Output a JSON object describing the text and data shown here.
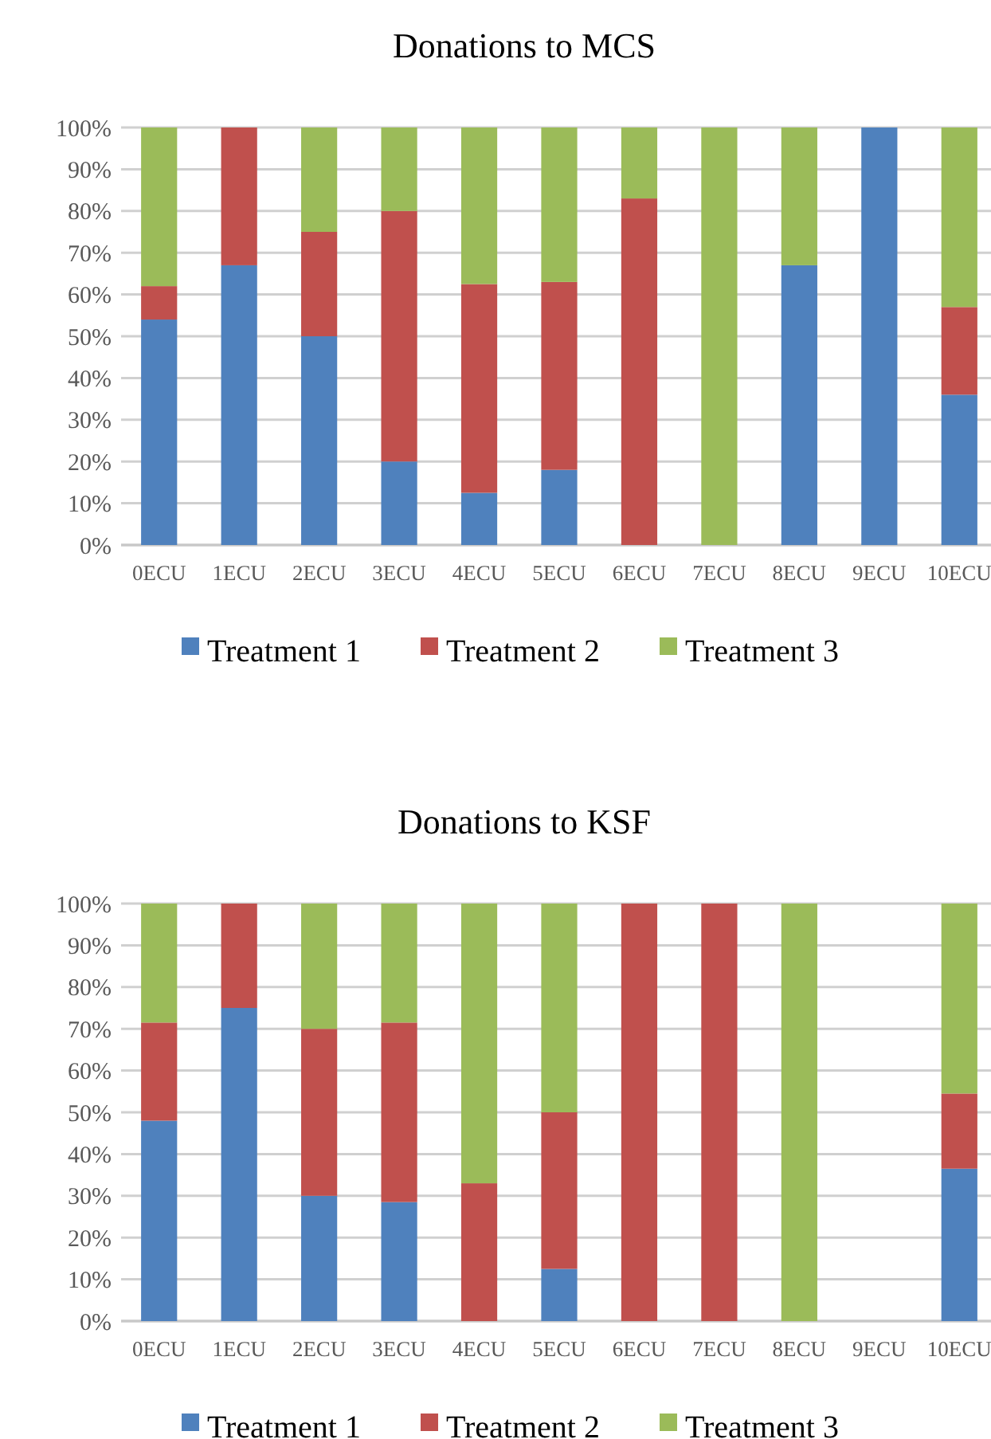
{
  "chart_data": [
    {
      "type": "bar",
      "title": "Donations to MCS",
      "stacked": true,
      "grid": "y",
      "legend": "bottom",
      "categories": [
        "0ECU",
        "1ECU",
        "2ECU",
        "3ECU",
        "4ECU",
        "5ECU",
        "6ECU",
        "7ECU",
        "8ECU",
        "9ECU",
        "10ECU"
      ],
      "ylim": [
        0,
        100
      ],
      "yticks": [
        {
          "value": 0,
          "label": "0%"
        },
        {
          "value": 10,
          "label": "10%"
        },
        {
          "value": 20,
          "label": "20%"
        },
        {
          "value": 30,
          "label": "30%"
        },
        {
          "value": 40,
          "label": "40%"
        },
        {
          "value": 50,
          "label": "50%"
        },
        {
          "value": 60,
          "label": "60%"
        },
        {
          "value": 70,
          "label": "70%"
        },
        {
          "value": 80,
          "label": "80%"
        },
        {
          "value": 90,
          "label": "90%"
        },
        {
          "value": 100,
          "label": "100%"
        }
      ],
      "series": [
        {
          "name": "Treatment 1",
          "color": "#4f81bd",
          "values": [
            54,
            67,
            50,
            20,
            12.5,
            18,
            0,
            0,
            67,
            100,
            36
          ]
        },
        {
          "name": "Treatment 2",
          "color": "#c0504d",
          "values": [
            8,
            33,
            25,
            60,
            50,
            45,
            83,
            0,
            0,
            0,
            21
          ]
        },
        {
          "name": "Treatment 3",
          "color": "#9bbb59",
          "values": [
            38,
            0,
            25,
            20,
            37.5,
            37,
            17,
            100,
            33,
            0,
            43
          ]
        }
      ]
    },
    {
      "type": "bar",
      "title": "Donations to KSF",
      "stacked": true,
      "grid": "y",
      "legend": "bottom",
      "categories": [
        "0ECU",
        "1ECU",
        "2ECU",
        "3ECU",
        "4ECU",
        "5ECU",
        "6ECU",
        "7ECU",
        "8ECU",
        "9ECU",
        "10ECU"
      ],
      "ylim": [
        0,
        100
      ],
      "yticks": [
        {
          "value": 0,
          "label": "0%"
        },
        {
          "value": 10,
          "label": "10%"
        },
        {
          "value": 20,
          "label": "20%"
        },
        {
          "value": 30,
          "label": "30%"
        },
        {
          "value": 40,
          "label": "40%"
        },
        {
          "value": 50,
          "label": "50%"
        },
        {
          "value": 60,
          "label": "60%"
        },
        {
          "value": 70,
          "label": "70%"
        },
        {
          "value": 80,
          "label": "80%"
        },
        {
          "value": 90,
          "label": "90%"
        },
        {
          "value": 100,
          "label": "100%"
        }
      ],
      "series": [
        {
          "name": "Treatment 1",
          "color": "#4f81bd",
          "values": [
            48,
            75,
            30,
            28.5,
            0,
            12.5,
            0,
            0,
            0,
            0,
            36.5
          ]
        },
        {
          "name": "Treatment 2",
          "color": "#c0504d",
          "values": [
            23.5,
            25,
            40,
            43,
            33,
            37.5,
            100,
            100,
            0,
            0,
            18
          ]
        },
        {
          "name": "Treatment 3",
          "color": "#9bbb59",
          "values": [
            28.5,
            0,
            30,
            28.5,
            67,
            50,
            0,
            0,
            100,
            0,
            45.5
          ]
        }
      ]
    }
  ]
}
